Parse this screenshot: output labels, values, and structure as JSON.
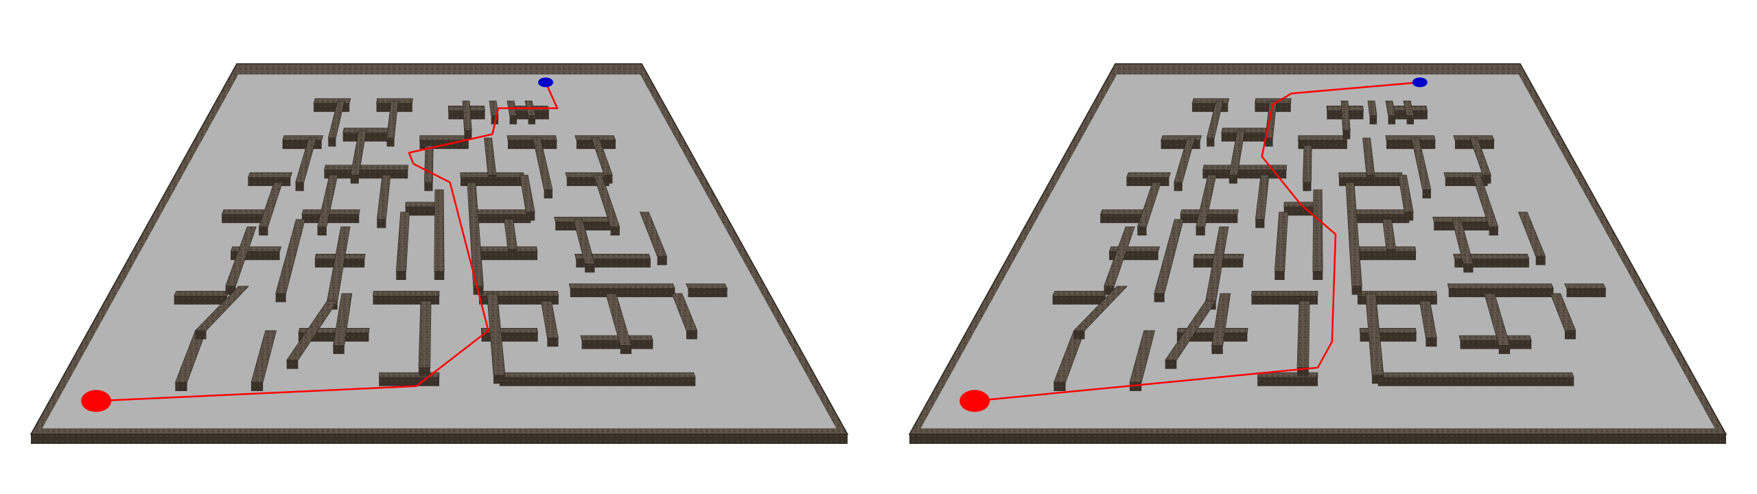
{
  "colors": {
    "background": "#ffffff",
    "floor": "#b3b3b3",
    "wall_top": "#5c5247",
    "wall_side": "#3c342b",
    "wall_edge": "#2a241d",
    "path": "#ff0000",
    "start_marker": "#ff0000",
    "goal_marker": "#0000cc"
  },
  "panels": [
    {
      "name": "left",
      "path": [
        [
          0.06,
          0.91
        ],
        [
          0.47,
          0.87
        ],
        [
          0.57,
          0.72
        ],
        [
          0.52,
          0.32
        ],
        [
          0.45,
          0.27
        ],
        [
          0.44,
          0.24
        ],
        [
          0.61,
          0.19
        ],
        [
          0.63,
          0.12
        ],
        [
          0.76,
          0.12
        ],
        [
          0.75,
          0.05
        ]
      ]
    },
    {
      "name": "right",
      "path": [
        [
          0.06,
          0.91
        ],
        [
          0.5,
          0.82
        ],
        [
          0.52,
          0.75
        ],
        [
          0.53,
          0.46
        ],
        [
          0.47,
          0.38
        ],
        [
          0.39,
          0.25
        ],
        [
          0.4,
          0.11
        ],
        [
          0.44,
          0.08
        ],
        [
          0.74,
          0.05
        ]
      ]
    }
  ]
}
